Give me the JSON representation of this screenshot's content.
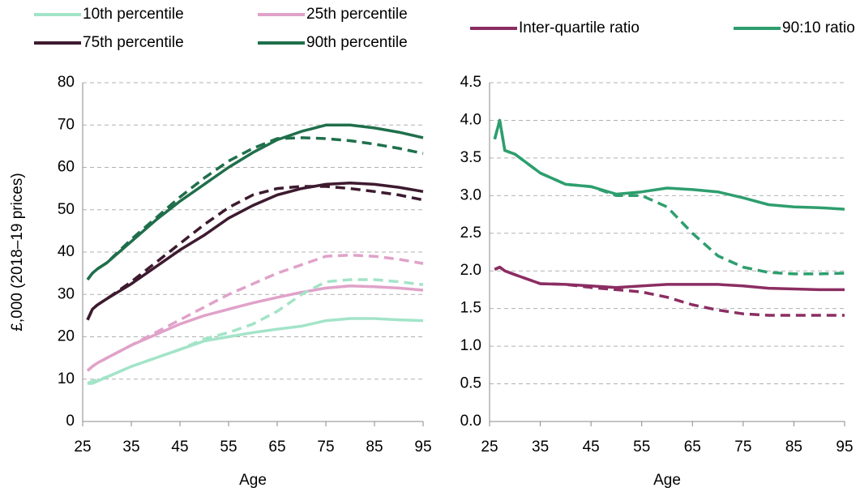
{
  "chart_data": [
    {
      "type": "line",
      "ylabel": "£,000 (2018–19 prices)",
      "xlabel": "Age",
      "x": [
        26,
        27,
        28,
        30,
        35,
        40,
        45,
        50,
        55,
        60,
        65,
        70,
        75,
        80,
        85,
        90,
        95
      ],
      "xlim": [
        25,
        95
      ],
      "xticks": [
        25,
        35,
        45,
        55,
        65,
        75,
        85,
        95
      ],
      "ylim": [
        0,
        80
      ],
      "yticks": [
        0,
        10,
        20,
        30,
        40,
        50,
        60,
        70,
        80
      ],
      "grid": true,
      "series": [
        {
          "name": "10th percentile",
          "color": "#a3e4c8",
          "values": [
            9,
            9,
            9.5,
            10.5,
            13,
            15,
            17,
            19,
            20,
            21,
            21.8,
            22.5,
            23.8,
            24.3,
            24.3,
            24,
            23.8
          ]
        },
        {
          "name": "25th percentile",
          "color": "#e0a2c9",
          "values": [
            12,
            13,
            13.8,
            15,
            18,
            20.5,
            23,
            25,
            26.5,
            28,
            29.3,
            30.5,
            31.5,
            32,
            31.8,
            31.5,
            31
          ]
        },
        {
          "name": "75th percentile",
          "color": "#3d1a2f",
          "values": [
            24,
            26.5,
            27.5,
            29,
            32.5,
            36.5,
            40.5,
            44,
            48,
            51,
            53.5,
            55,
            56,
            56.3,
            56,
            55.3,
            54.3
          ]
        },
        {
          "name": "90th percentile",
          "color": "#1f6f4b",
          "values": [
            33.5,
            35,
            36,
            37.5,
            42.5,
            47.5,
            52,
            56,
            60,
            63.5,
            66.5,
            68.5,
            70,
            70,
            69.3,
            68.3,
            67
          ]
        },
        {
          "color": "#a3e4c8",
          "dashed": true,
          "values": [
            9,
            9.5,
            9.8,
            10.5,
            13,
            15,
            17,
            19.5,
            21,
            23,
            26,
            30,
            33,
            33.5,
            33.5,
            33,
            32.3
          ]
        },
        {
          "color": "#e0a2c9",
          "dashed": true,
          "values": [
            12,
            13,
            13.8,
            15,
            18,
            21,
            24,
            27,
            30,
            32.5,
            35,
            37,
            39,
            39.3,
            39,
            38.3,
            37.3
          ]
        },
        {
          "color": "#3d1a2f",
          "dashed": true,
          "values": [
            24,
            26.5,
            27.5,
            29,
            33,
            37.5,
            42,
            46.5,
            50.5,
            53.5,
            55,
            55.5,
            55.5,
            55,
            54.3,
            53.5,
            52.3
          ]
        },
        {
          "color": "#1f6f4b",
          "dashed": true,
          "values": [
            33.5,
            35,
            36,
            37.5,
            43,
            48,
            53,
            57.5,
            61.5,
            64.5,
            66.8,
            67,
            66.8,
            66.3,
            65.5,
            64.5,
            63.3
          ]
        }
      ]
    },
    {
      "type": "line",
      "xlabel": "Age",
      "x": [
        26,
        27,
        28,
        30,
        35,
        40,
        45,
        50,
        55,
        60,
        65,
        70,
        75,
        80,
        85,
        90,
        95
      ],
      "xlim": [
        25,
        95
      ],
      "xticks": [
        25,
        35,
        45,
        55,
        65,
        75,
        85,
        95
      ],
      "ylim": [
        0,
        4.5
      ],
      "yticks": [
        {
          "value": 0,
          "label": "0.0"
        },
        0.5,
        {
          "value": 1,
          "label": "1.0"
        },
        1.5,
        {
          "value": 2,
          "label": "2.0"
        },
        2.5,
        {
          "value": 3,
          "label": "3.0"
        },
        3.5,
        {
          "value": 4,
          "label": "4.0"
        },
        4.5
      ],
      "grid": true,
      "series": [
        {
          "name": "Inter-quartile ratio",
          "color": "#8b2d62",
          "values": [
            2.02,
            2.05,
            2.0,
            1.95,
            1.83,
            1.82,
            1.8,
            1.78,
            1.8,
            1.82,
            1.82,
            1.82,
            1.8,
            1.77,
            1.76,
            1.75,
            1.75
          ]
        },
        {
          "name": "90:10 ratio",
          "color": "#2e9e6e",
          "values": [
            3.75,
            4.0,
            3.6,
            3.55,
            3.3,
            3.15,
            3.12,
            3.02,
            3.05,
            3.1,
            3.08,
            3.05,
            2.97,
            2.88,
            2.85,
            2.84,
            2.82
          ]
        },
        {
          "color": "#8b2d62",
          "dashed": true,
          "values": [
            2.02,
            2.05,
            2.0,
            1.95,
            1.83,
            1.82,
            1.78,
            1.75,
            1.72,
            1.65,
            1.55,
            1.48,
            1.43,
            1.41,
            1.41,
            1.41,
            1.41
          ]
        },
        {
          "color": "#2e9e6e",
          "dashed": true,
          "values": [
            3.75,
            4.0,
            3.6,
            3.55,
            3.3,
            3.15,
            3.12,
            3.0,
            3.0,
            2.85,
            2.5,
            2.2,
            2.05,
            1.98,
            1.96,
            1.96,
            1.97
          ]
        }
      ]
    }
  ]
}
